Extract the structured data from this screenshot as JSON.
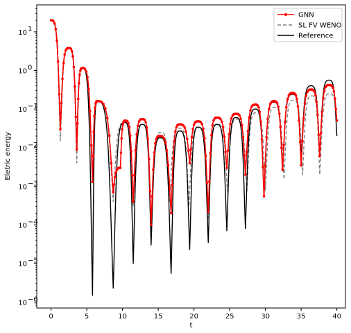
{
  "chart_data": {
    "type": "line",
    "title": "",
    "xlabel": "t",
    "ylabel": "Eletric energy",
    "xscale": "linear",
    "yscale": "log",
    "xlim": [
      -2,
      41.2
    ],
    "ylim": [
      7e-07,
      50
    ],
    "xticks": [
      0,
      5,
      10,
      15,
      20,
      25,
      30,
      35,
      40
    ],
    "xtick_labels": [
      "0",
      "5",
      "10",
      "15",
      "20",
      "25",
      "30",
      "35",
      "40"
    ],
    "yticks": [
      1e-06,
      1e-05,
      0.0001,
      0.001,
      0.01,
      0.1,
      1,
      10
    ],
    "ytick_labels": [
      "10",
      "10",
      "10",
      "10",
      "10",
      "10",
      "10",
      "10"
    ],
    "ytick_exponents": [
      "−6",
      "−5",
      "−4",
      "−3",
      "−2",
      "−1",
      "0",
      "1"
    ],
    "grid": false,
    "legend_position": "top-right",
    "series": [
      {
        "name": "GNN",
        "color": "#ff0000",
        "style": "solid-with-dot-markers",
        "envelope_peaks": [
          [
            0,
            20
          ],
          [
            2.5,
            3.8
          ],
          [
            4.4,
            1.15
          ],
          [
            6.5,
            0.16
          ],
          [
            9.7,
            0.003
          ],
          [
            10.4,
            0.05
          ],
          [
            12.8,
            0.055
          ],
          [
            15.2,
            0.02
          ],
          [
            18.0,
            0.04
          ],
          [
            20.6,
            0.048
          ],
          [
            23.2,
            0.06
          ],
          [
            25.9,
            0.075
          ],
          [
            28.6,
            0.13
          ],
          [
            31.2,
            0.16
          ],
          [
            33.8,
            0.26
          ],
          [
            36.4,
            0.32
          ],
          [
            38.9,
            0.42
          ],
          [
            40,
            0.05
          ]
        ],
        "envelope_dips": [
          [
            1.3,
            0.03
          ],
          [
            3.6,
            0.009
          ],
          [
            5.8,
            0.0013
          ],
          [
            8.7,
            0.0007
          ],
          [
            11.5,
            0.0004
          ],
          [
            14.0,
            0.0001
          ],
          [
            16.8,
            0.0002
          ],
          [
            19.4,
            0.004
          ],
          [
            22.0,
            0.00022
          ],
          [
            24.6,
            0.003
          ],
          [
            27.2,
            0.002
          ],
          [
            29.8,
            0.00055
          ],
          [
            32.4,
            0.0027
          ],
          [
            35.0,
            0.0035
          ],
          [
            37.6,
            0.006
          ]
        ]
      },
      {
        "name": "SL FV WENO",
        "color": "#808080",
        "style": "dashed",
        "envelope_peaks": [
          [
            0,
            20
          ],
          [
            2.5,
            3.8
          ],
          [
            4.4,
            1.15
          ],
          [
            6.5,
            0.16
          ],
          [
            10.3,
            0.045
          ],
          [
            12.8,
            0.04
          ],
          [
            15.4,
            0.025
          ],
          [
            18.0,
            0.032
          ],
          [
            20.6,
            0.034
          ],
          [
            23.3,
            0.04
          ],
          [
            26.0,
            0.055
          ],
          [
            28.7,
            0.08
          ],
          [
            31.3,
            0.11
          ],
          [
            33.9,
            0.17
          ],
          [
            36.5,
            0.22
          ],
          [
            39.0,
            0.25
          ],
          [
            40,
            0.05
          ]
        ],
        "envelope_dips": [
          [
            1.3,
            0.015
          ],
          [
            3.6,
            0.004
          ],
          [
            5.8,
            0.0013
          ],
          [
            8.7,
            0.0004
          ],
          [
            11.5,
            0.0003
          ],
          [
            14.0,
            6e-05
          ],
          [
            16.6,
            0.0004
          ],
          [
            19.3,
            0.0003
          ],
          [
            22.0,
            0.00015
          ],
          [
            24.7,
            0.0007
          ],
          [
            27.4,
            0.0007
          ],
          [
            30.0,
            0.0008
          ],
          [
            32.6,
            0.0015
          ],
          [
            35.2,
            0.002
          ],
          [
            37.6,
            0.002
          ]
        ]
      },
      {
        "name": "Reference",
        "color": "#000000",
        "style": "solid",
        "envelope_peaks": [
          [
            0,
            20
          ],
          [
            2.5,
            3.8
          ],
          [
            4.4,
            1.15
          ],
          [
            6.5,
            0.16
          ],
          [
            10.3,
            0.045
          ],
          [
            12.8,
            0.04
          ],
          [
            15.3,
            0.018
          ],
          [
            18.0,
            0.027
          ],
          [
            20.6,
            0.034
          ],
          [
            23.2,
            0.04
          ],
          [
            25.9,
            0.06
          ],
          [
            28.6,
            0.1
          ],
          [
            31.2,
            0.15
          ],
          [
            33.8,
            0.24
          ],
          [
            36.4,
            0.4
          ],
          [
            38.9,
            0.56
          ],
          [
            40,
            0.02
          ]
        ],
        "envelope_dips": [
          [
            1.3,
            0.03
          ],
          [
            3.6,
            0.009
          ],
          [
            5.8,
            1.5e-06
          ],
          [
            8.7,
            2.3e-06
          ],
          [
            11.5,
            1e-05
          ],
          [
            14.0,
            3e-05
          ],
          [
            16.8,
            5.5e-06
          ],
          [
            19.4,
            2.3e-05
          ],
          [
            22.0,
            3.5e-05
          ],
          [
            24.6,
            7e-05
          ],
          [
            27.2,
            8e-05
          ],
          [
            29.8,
            0.0006
          ],
          [
            32.4,
            0.0025
          ],
          [
            35.0,
            0.0055
          ],
          [
            37.6,
            0.006
          ]
        ]
      }
    ]
  }
}
